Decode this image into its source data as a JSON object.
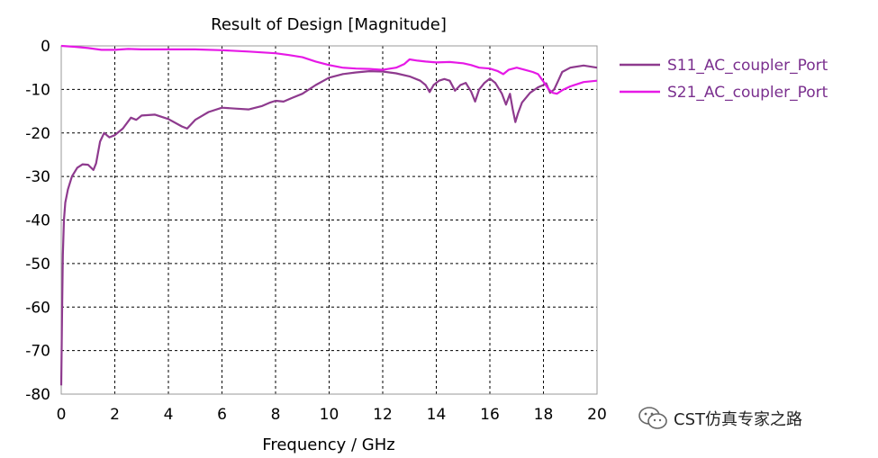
{
  "chart_data": {
    "type": "line",
    "title": "Result of Design [Magnitude]",
    "xlabel": "Frequency / GHz",
    "ylabel": "",
    "xlim": [
      0,
      20
    ],
    "ylim": [
      -80,
      0
    ],
    "xticks": [
      0,
      2,
      4,
      6,
      8,
      10,
      12,
      14,
      16,
      18,
      20
    ],
    "yticks": [
      0,
      -10,
      -20,
      -30,
      -40,
      -50,
      -60,
      -70,
      -80
    ],
    "grid": true,
    "legend_position": "right",
    "series": [
      {
        "name": "S11_AC_coupler_Port",
        "color": "#8e3a8e",
        "points": [
          [
            0.0,
            -78
          ],
          [
            0.03,
            -62
          ],
          [
            0.06,
            -48
          ],
          [
            0.1,
            -40
          ],
          [
            0.15,
            -36
          ],
          [
            0.25,
            -33
          ],
          [
            0.4,
            -30
          ],
          [
            0.6,
            -28
          ],
          [
            0.8,
            -27.2
          ],
          [
            1.0,
            -27.3
          ],
          [
            1.2,
            -28.5
          ],
          [
            1.3,
            -27
          ],
          [
            1.45,
            -22
          ],
          [
            1.6,
            -20
          ],
          [
            1.8,
            -21
          ],
          [
            2.0,
            -20.5
          ],
          [
            2.3,
            -19
          ],
          [
            2.6,
            -16.5
          ],
          [
            2.8,
            -17
          ],
          [
            3.0,
            -16
          ],
          [
            3.5,
            -15.8
          ],
          [
            4.0,
            -16.8
          ],
          [
            4.5,
            -18.5
          ],
          [
            4.7,
            -19
          ],
          [
            5.0,
            -17
          ],
          [
            5.5,
            -15.2
          ],
          [
            6.0,
            -14.2
          ],
          [
            6.5,
            -14.4
          ],
          [
            7.0,
            -14.6
          ],
          [
            7.5,
            -13.8
          ],
          [
            7.8,
            -13
          ],
          [
            8.0,
            -12.6
          ],
          [
            8.3,
            -12.8
          ],
          [
            8.6,
            -12
          ],
          [
            9.0,
            -11
          ],
          [
            9.5,
            -9
          ],
          [
            10.0,
            -7.3
          ],
          [
            10.5,
            -6.5
          ],
          [
            11.0,
            -6.1
          ],
          [
            11.5,
            -5.8
          ],
          [
            12.0,
            -5.9
          ],
          [
            12.5,
            -6.3
          ],
          [
            13.0,
            -7
          ],
          [
            13.4,
            -8
          ],
          [
            13.6,
            -9
          ],
          [
            13.75,
            -10.6
          ],
          [
            13.9,
            -9
          ],
          [
            14.1,
            -8
          ],
          [
            14.3,
            -7.6
          ],
          [
            14.5,
            -8
          ],
          [
            14.7,
            -10.3
          ],
          [
            14.9,
            -9
          ],
          [
            15.1,
            -8.5
          ],
          [
            15.3,
            -10.5
          ],
          [
            15.45,
            -12.8
          ],
          [
            15.6,
            -10
          ],
          [
            15.8,
            -8.5
          ],
          [
            16.0,
            -7.5
          ],
          [
            16.2,
            -8.5
          ],
          [
            16.45,
            -11
          ],
          [
            16.6,
            -13.5
          ],
          [
            16.75,
            -11
          ],
          [
            16.85,
            -14.5
          ],
          [
            16.95,
            -17.5
          ],
          [
            17.05,
            -15.5
          ],
          [
            17.2,
            -13
          ],
          [
            17.5,
            -10.8
          ],
          [
            17.8,
            -9.5
          ],
          [
            18.0,
            -9
          ],
          [
            18.1,
            -8.6
          ],
          [
            18.25,
            -10.8
          ],
          [
            18.4,
            -10
          ],
          [
            18.55,
            -8
          ],
          [
            18.7,
            -6
          ],
          [
            19.0,
            -5
          ],
          [
            19.5,
            -4.5
          ],
          [
            20.0,
            -5
          ]
        ]
      },
      {
        "name": "S21_AC_coupler_Port",
        "color": "#e619e6",
        "points": [
          [
            0.0,
            0
          ],
          [
            0.5,
            -0.2
          ],
          [
            1.0,
            -0.5
          ],
          [
            1.5,
            -0.9
          ],
          [
            2.0,
            -0.9
          ],
          [
            2.5,
            -0.7
          ],
          [
            3.0,
            -0.8
          ],
          [
            4.0,
            -0.8
          ],
          [
            5.0,
            -0.8
          ],
          [
            6.0,
            -1.0
          ],
          [
            7.0,
            -1.3
          ],
          [
            8.0,
            -1.7
          ],
          [
            8.5,
            -2.1
          ],
          [
            9.0,
            -2.6
          ],
          [
            9.5,
            -3.6
          ],
          [
            10.0,
            -4.4
          ],
          [
            10.5,
            -5.0
          ],
          [
            11.0,
            -5.2
          ],
          [
            11.5,
            -5.3
          ],
          [
            12.0,
            -5.5
          ],
          [
            12.5,
            -5.0
          ],
          [
            12.8,
            -4.2
          ],
          [
            13.0,
            -3.1
          ],
          [
            13.3,
            -3.4
          ],
          [
            13.6,
            -3.6
          ],
          [
            14.0,
            -3.8
          ],
          [
            14.5,
            -3.7
          ],
          [
            15.0,
            -4.0
          ],
          [
            15.3,
            -4.4
          ],
          [
            15.6,
            -5.0
          ],
          [
            16.0,
            -5.2
          ],
          [
            16.3,
            -5.8
          ],
          [
            16.5,
            -6.5
          ],
          [
            16.7,
            -5.5
          ],
          [
            17.0,
            -5.0
          ],
          [
            17.3,
            -5.5
          ],
          [
            17.6,
            -6.0
          ],
          [
            17.8,
            -6.5
          ],
          [
            18.0,
            -8.2
          ],
          [
            18.2,
            -10.0
          ],
          [
            18.35,
            -10.8
          ],
          [
            18.5,
            -11.0
          ],
          [
            18.7,
            -10.2
          ],
          [
            19.0,
            -9.3
          ],
          [
            19.5,
            -8.3
          ],
          [
            20.0,
            -8.0
          ]
        ]
      }
    ]
  },
  "watermark": {
    "text": "CST仿真专家之路",
    "icon": "wechat-icon"
  }
}
